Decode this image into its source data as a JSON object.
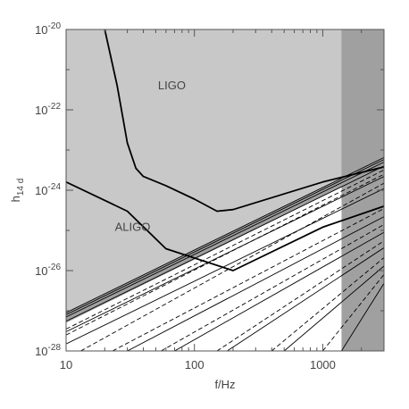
{
  "chart_data": {
    "type": "line",
    "title": "",
    "xlabel": "f/Hz",
    "ylabel_main": "h",
    "ylabel_sub": "14 d",
    "x_scale": "log",
    "y_scale": "log",
    "xlim": [
      10,
      3000
    ],
    "ylim": [
      1e-28,
      1e-20
    ],
    "x_ticks": [
      {
        "value": 10,
        "label": "10"
      },
      {
        "value": 100,
        "label": "100"
      },
      {
        "value": 1000,
        "label": "1000"
      }
    ],
    "y_ticks": [
      {
        "value": 1e-28,
        "base": "10",
        "exp": "-28"
      },
      {
        "value": 1e-26,
        "base": "10",
        "exp": "-26"
      },
      {
        "value": 1e-24,
        "base": "10",
        "exp": "-24"
      },
      {
        "value": 1e-22,
        "base": "10",
        "exp": "-22"
      },
      {
        "value": 1e-20,
        "base": "10",
        "exp": "-20"
      }
    ],
    "colors": {
      "excluded_region": "#c8c8c8",
      "band_region": "#a0a0a0",
      "high_freq_region": "#a0a0a0",
      "lines": "#000000"
    },
    "regions": [
      {
        "name": "excluded-region",
        "boundary_line": [
          [
            10,
            9e-28
          ],
          [
            3000,
            6.5e-24
          ]
        ]
      },
      {
        "name": "high-frequency-region",
        "x_from": 1400,
        "x_to": 3000
      },
      {
        "name": "boundary-band",
        "lower_line": [
          [
            10,
            5e-28
          ],
          [
            3000,
            4e-24
          ]
        ]
      }
    ],
    "series": [
      {
        "label": "LIGO",
        "label_at": [
          52,
          4e-22
        ],
        "style": "thick",
        "points": [
          [
            20,
            1e-20
          ],
          [
            25,
            4e-22
          ],
          [
            30,
            1.5e-23
          ],
          [
            35,
            3.5e-24
          ],
          [
            40,
            2.2e-24
          ],
          [
            60,
            1.3e-24
          ],
          [
            100,
            6e-25
          ],
          [
            150,
            3e-25
          ],
          [
            200,
            3.3e-25
          ],
          [
            1000,
            1.6e-24
          ],
          [
            3000,
            3.8e-24
          ]
        ]
      },
      {
        "label": "ALIGO",
        "label_at": [
          24,
          1.2e-25
        ],
        "style": "thick",
        "points": [
          [
            10,
            1.6e-24
          ],
          [
            30,
            3e-25
          ],
          [
            60,
            3.5e-26
          ],
          [
            200,
            1e-26
          ],
          [
            1000,
            1.2e-25
          ],
          [
            3000,
            4e-25
          ]
        ]
      }
    ],
    "reference_solid": [
      {
        "points": [
          [
            10,
            9e-28
          ],
          [
            3000,
            6.5e-24
          ]
        ]
      },
      {
        "points": [
          [
            10,
            8e-28
          ],
          [
            3000,
            5.8e-24
          ]
        ]
      },
      {
        "points": [
          [
            10,
            7e-28
          ],
          [
            3000,
            5e-24
          ]
        ]
      },
      {
        "points": [
          [
            10,
            5.5e-28
          ],
          [
            3000,
            4e-24
          ]
        ]
      },
      {
        "points": [
          [
            10,
            3e-28
          ],
          [
            3000,
            2.2e-24
          ]
        ]
      },
      {
        "points": [
          [
            10,
            1.5e-28
          ],
          [
            3000,
            1.1e-24
          ]
        ]
      },
      {
        "points": [
          [
            30,
            1e-28
          ],
          [
            3000,
            2.2e-25
          ]
        ]
      },
      {
        "points": [
          [
            70,
            1e-28
          ],
          [
            3000,
            9e-26
          ]
        ]
      },
      {
        "points": [
          [
            180,
            1e-28
          ],
          [
            3000,
            3.7e-26
          ]
        ]
      },
      {
        "points": [
          [
            500,
            1e-28
          ],
          [
            3000,
            1.3e-26
          ]
        ]
      },
      {
        "points": [
          [
            1400,
            1e-28
          ],
          [
            3000,
            4.8e-27
          ]
        ]
      }
    ],
    "reference_dashed": [
      {
        "points": [
          [
            10,
            3.5e-28
          ],
          [
            3000,
            3.2e-24
          ]
        ]
      },
      {
        "points": [
          [
            10,
            2.5e-28
          ],
          [
            3000,
            2.5e-24
          ]
        ]
      },
      {
        "points": [
          [
            13,
            1e-28
          ],
          [
            3000,
            1.5e-24
          ]
        ]
      },
      {
        "points": [
          [
            23,
            1e-28
          ],
          [
            3000,
            3.5e-25
          ]
        ]
      },
      {
        "points": [
          [
            55,
            1e-28
          ],
          [
            3000,
            1.4e-25
          ]
        ]
      },
      {
        "points": [
          [
            150,
            1e-28
          ],
          [
            3000,
            5.5e-26
          ]
        ]
      },
      {
        "points": [
          [
            400,
            1e-28
          ],
          [
            3000,
            2.1e-26
          ]
        ]
      },
      {
        "points": [
          [
            1000,
            1e-28
          ],
          [
            3000,
            8e-27
          ]
        ]
      }
    ],
    "grid": false,
    "legend": "none"
  }
}
